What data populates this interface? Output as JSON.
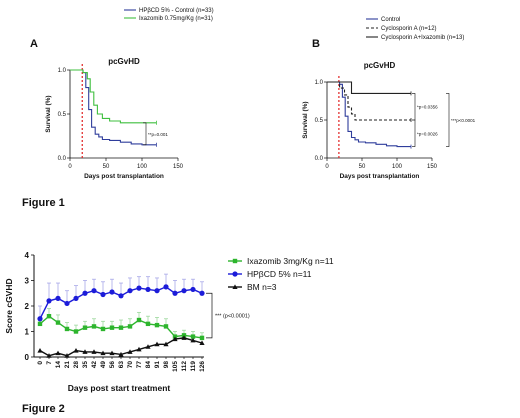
{
  "figure_labels": [
    "Figure 1",
    "Figure 2"
  ],
  "chart_data": [
    {
      "type": "line",
      "panel": "A",
      "title": "pcGvHD",
      "xlabel": "Days post transplantation",
      "ylabel": "Survival (%)",
      "xlim": [
        0,
        150
      ],
      "ylim": [
        0.0,
        1.0
      ],
      "xticks": [
        "0",
        "50",
        "100",
        "150"
      ],
      "yticks": [
        "0.0",
        "0.5",
        "1.0"
      ],
      "series": [
        {
          "name": "HPβCD 5% - Control (n=33)",
          "color": "#2f3d9c",
          "x": [
            0,
            18,
            22,
            26,
            30,
            35,
            40,
            45,
            55,
            70,
            85,
            100,
            120
          ],
          "y": [
            1.0,
            0.97,
            0.8,
            0.55,
            0.35,
            0.27,
            0.24,
            0.21,
            0.2,
            0.18,
            0.16,
            0.15,
            0.15
          ]
        },
        {
          "name": "Ixazomib 0.75mg/Kg (n=31)",
          "color": "#3fbf3f",
          "x": [
            0,
            18,
            24,
            28,
            33,
            38,
            45,
            55,
            70,
            90,
            120
          ],
          "y": [
            1.0,
            0.97,
            0.9,
            0.75,
            0.6,
            0.5,
            0.45,
            0.42,
            0.4,
            0.4,
            0.4
          ]
        }
      ],
      "annotations": [
        "**p=0.001"
      ]
    },
    {
      "type": "line",
      "panel": "B",
      "title": "pcGvHD",
      "xlabel": "Days post transplantation",
      "ylabel": "Survival (%)",
      "xlim": [
        0,
        150
      ],
      "ylim": [
        0.0,
        1.0
      ],
      "xticks": [
        "0",
        "50",
        "100",
        "150"
      ],
      "yticks": [
        "0.0",
        "0.5",
        "1.0"
      ],
      "series": [
        {
          "name": "Control",
          "color": "#2f3d9c",
          "x": [
            0,
            18,
            22,
            26,
            30,
            35,
            40,
            45,
            55,
            70,
            85,
            100,
            120
          ],
          "y": [
            1.0,
            0.97,
            0.8,
            0.55,
            0.35,
            0.27,
            0.24,
            0.21,
            0.2,
            0.18,
            0.16,
            0.15,
            0.15
          ]
        },
        {
          "name": "Cyclosporin A (n=12)",
          "color": "#222222",
          "dashed": true,
          "x": [
            0,
            18,
            25,
            30,
            35,
            40,
            120
          ],
          "y": [
            1.0,
            0.92,
            0.83,
            0.67,
            0.58,
            0.5,
            0.5
          ]
        },
        {
          "name": "Cyclosporin A+Ixazomib (n=13)",
          "color": "#222222",
          "x": [
            0,
            30,
            35,
            120
          ],
          "y": [
            1.0,
            1.0,
            0.85,
            0.85
          ]
        }
      ],
      "annotations": [
        "*p=0.0356",
        "*p=0.0026",
        "***p<0.0001"
      ]
    },
    {
      "type": "line",
      "xlabel": "Days post start treatment",
      "ylabel": "Score cGVHD",
      "ylim": [
        0,
        4
      ],
      "yticks": [
        "0",
        "1",
        "2",
        "3",
        "4"
      ],
      "categories": [
        "0",
        "7",
        "14",
        "21",
        "28",
        "35",
        "42",
        "49",
        "56",
        "63",
        "70",
        "77",
        "84",
        "91",
        "98",
        "105",
        "112",
        "119",
        "126"
      ],
      "series": [
        {
          "name": "Ixazomib 3mg/Kg n=11",
          "color": "#2db52d",
          "marker": "square",
          "values": [
            1.3,
            1.6,
            1.35,
            1.1,
            1.0,
            1.15,
            1.2,
            1.1,
            1.15,
            1.15,
            1.2,
            1.45,
            1.3,
            1.25,
            1.2,
            0.8,
            0.85,
            0.8,
            0.75
          ],
          "errors": [
            0.25,
            0.3,
            0.3,
            0.25,
            0.25,
            0.25,
            0.3,
            0.3,
            0.25,
            0.3,
            0.3,
            0.3,
            0.3,
            0.3,
            0.3,
            0.2,
            0.2,
            0.2,
            0.2
          ]
        },
        {
          "name": "HPβCD 5% n=11",
          "color": "#1c1cd9",
          "marker": "circle",
          "values": [
            1.5,
            2.2,
            2.3,
            2.1,
            2.3,
            2.5,
            2.6,
            2.45,
            2.55,
            2.4,
            2.6,
            2.7,
            2.65,
            2.6,
            2.75,
            2.5,
            2.6,
            2.65,
            2.5
          ],
          "errors": [
            0.5,
            0.7,
            0.6,
            0.5,
            0.5,
            0.5,
            0.45,
            0.5,
            0.5,
            0.5,
            0.5,
            0.45,
            0.5,
            0.5,
            0.5,
            0.5,
            0.45,
            0.4,
            0.45
          ]
        },
        {
          "name": "BM n=3",
          "color": "#111111",
          "marker": "triangle",
          "values": [
            0.25,
            0.05,
            0.15,
            0.05,
            0.25,
            0.2,
            0.2,
            0.15,
            0.15,
            0.1,
            0.2,
            0.3,
            0.4,
            0.5,
            0.5,
            0.7,
            0.75,
            0.65,
            0.55
          ],
          "errors": [
            0,
            0,
            0,
            0,
            0,
            0,
            0,
            0,
            0,
            0,
            0,
            0,
            0,
            0,
            0,
            0,
            0,
            0,
            0
          ]
        }
      ],
      "annotations": [
        "*** (p<0.0001)"
      ]
    }
  ]
}
